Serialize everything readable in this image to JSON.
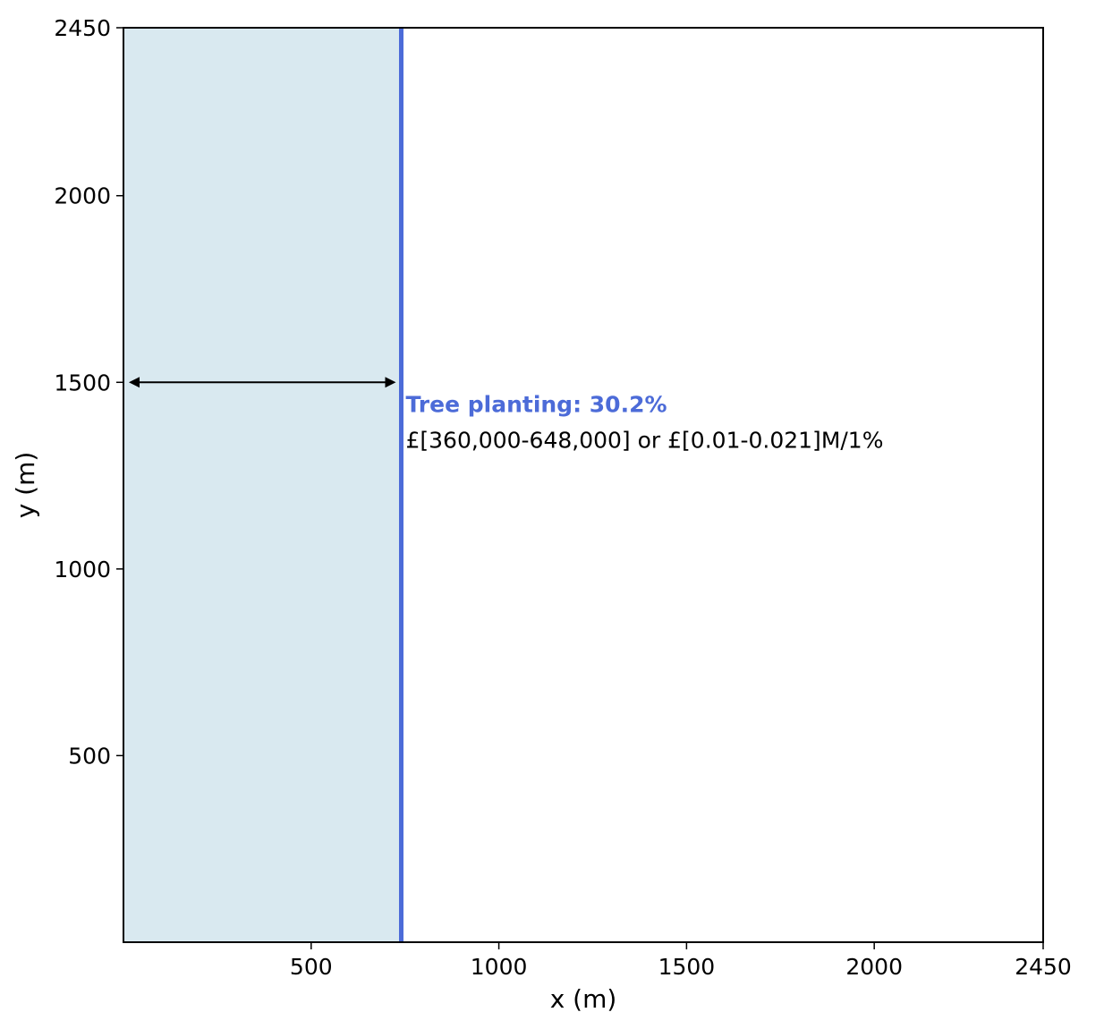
{
  "chart_data": {
    "type": "area",
    "xlabel": "x (m)",
    "ylabel": "y (m)",
    "xlim": [
      0,
      2450
    ],
    "ylim": [
      0,
      2450
    ],
    "x_ticks": [
      500,
      1000,
      1500,
      2000,
      2450
    ],
    "y_ticks": [
      500,
      1000,
      1500,
      2000,
      2450
    ],
    "grid": false,
    "planted_region": {
      "x_start": 0,
      "x_end": 740,
      "y_start": 0,
      "y_end": 2450
    },
    "boundary_line_x": 740,
    "arrow": {
      "x_start": 0,
      "x_end": 740,
      "y": 1500,
      "double_headed": true
    },
    "annotation": {
      "title": "Tree planting: 30.2%",
      "cost": "£[360,000-648,000] or £[0.01-0.021]M/1%",
      "x": 740,
      "y_title": 1420,
      "y_cost": 1325
    },
    "colors": {
      "region_fill": "#d9e9f0",
      "boundary": "#4c6bd8",
      "annotation_title": "#4c6bd8",
      "arrow": "#000000",
      "frame": "#000000"
    }
  }
}
